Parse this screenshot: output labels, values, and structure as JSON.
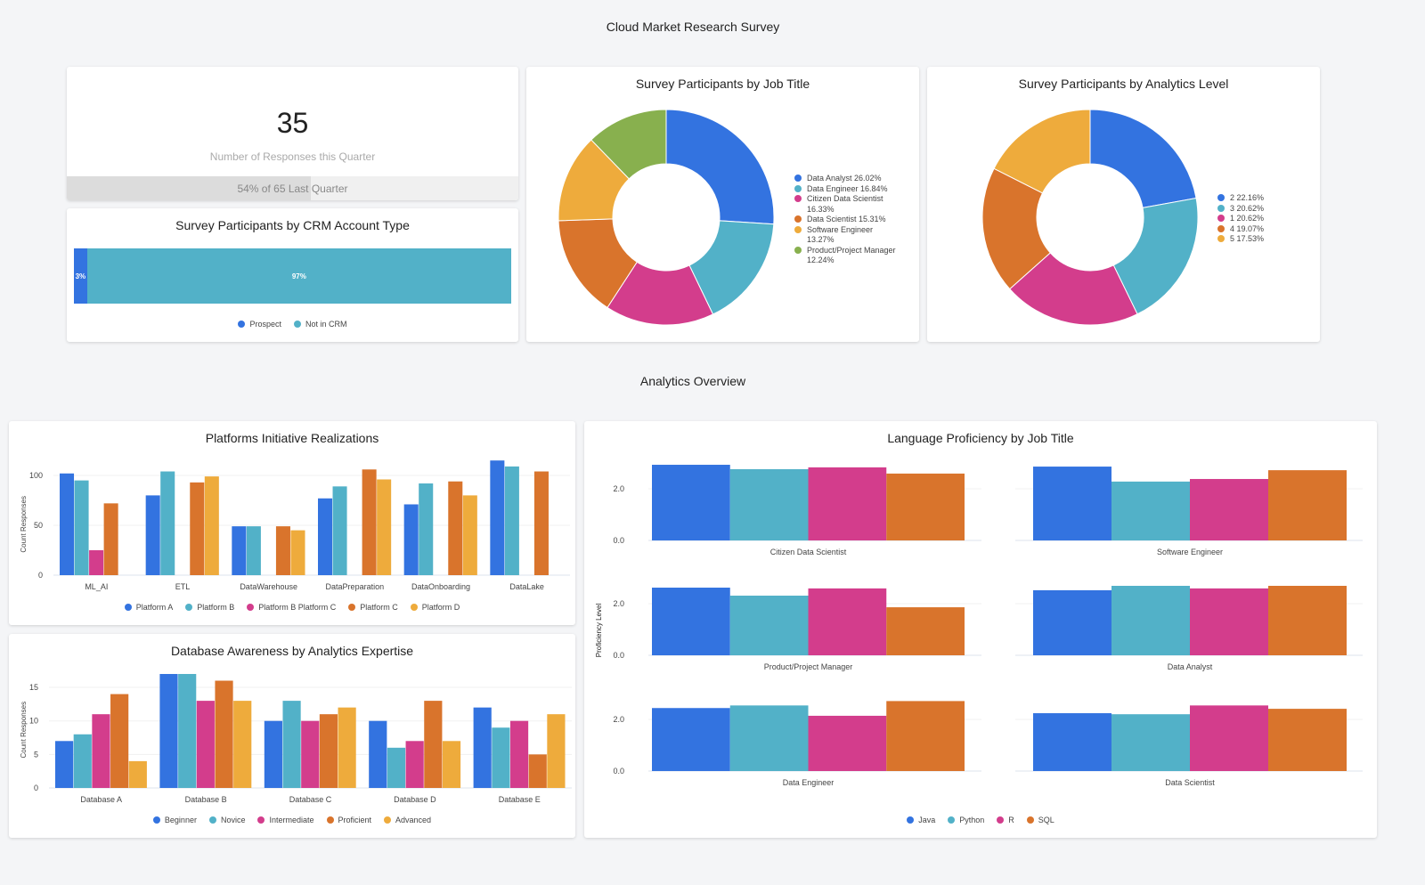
{
  "page_title": "Cloud Market Research Survey",
  "section2_title": "Analytics Overview",
  "colors": {
    "blue": "#3373e0",
    "teal": "#52b1c8",
    "pink": "#d33d8c",
    "orange": "#d9742c",
    "yellow": "#eeab3c",
    "green": "#88b04e"
  },
  "kpi": {
    "value": "35",
    "label": "Number of Responses this Quarter",
    "comparison": "54% of 65 Last Quarter",
    "progress_percent": 54
  },
  "crm": {
    "title": "Survey Participants by CRM Account Type",
    "segments": [
      {
        "name": "Prospect",
        "label": "3%",
        "value": 3,
        "color": "#3373e0"
      },
      {
        "name": "Not in CRM",
        "label": "97%",
        "value": 97,
        "color": "#52b1c8"
      }
    ]
  },
  "chart_data": [
    {
      "type": "pie",
      "title": "Survey Participants by Job Title",
      "donut": true,
      "legend": "right",
      "slices": [
        {
          "label": "Data Analyst 26.02%",
          "name": "Data Analyst",
          "value": 26.02,
          "color": "#3373e0"
        },
        {
          "label": "Data Engineer 16.84%",
          "name": "Data Engineer",
          "value": 16.84,
          "color": "#52b1c8"
        },
        {
          "label": "Citizen Data Scientist 16.33%",
          "name": "Citizen Data Scientist",
          "value": 16.33,
          "color": "#d33d8c"
        },
        {
          "label": "Data Scientist 15.31%",
          "name": "Data Scientist",
          "value": 15.31,
          "color": "#d9742c"
        },
        {
          "label": "Software Engineer 13.27%",
          "name": "Software Engineer",
          "value": 13.27,
          "color": "#eeab3c"
        },
        {
          "label": "Product/Project Manager 12.24%",
          "name": "Product/Project Manager",
          "value": 12.24,
          "color": "#88b04e"
        }
      ]
    },
    {
      "type": "pie",
      "title": "Survey Participants by Analytics Level",
      "donut": true,
      "legend": "right",
      "slices": [
        {
          "label": "2 22.16%",
          "name": "2",
          "value": 22.16,
          "color": "#3373e0"
        },
        {
          "label": "3 20.62%",
          "name": "3",
          "value": 20.62,
          "color": "#52b1c8"
        },
        {
          "label": "1 20.62%",
          "name": "1",
          "value": 20.62,
          "color": "#d33d8c"
        },
        {
          "label": "4 19.07%",
          "name": "4",
          "value": 19.07,
          "color": "#d9742c"
        },
        {
          "label": "5 17.53%",
          "name": "5",
          "value": 17.53,
          "color": "#eeab3c"
        }
      ]
    },
    {
      "type": "bar",
      "title": "Platforms Initiative Realizations",
      "ylabel": "Count Responses",
      "ylim": [
        0,
        120
      ],
      "yticks": [
        "0",
        "50",
        "100"
      ],
      "legend": "bottom",
      "categories": [
        "ML_AI",
        "ETL",
        "DataWarehouse",
        "DataPreparation",
        "DataOnboarding",
        "DataLake"
      ],
      "series": [
        {
          "name": "Platform A",
          "color": "#3373e0",
          "values": [
            102,
            80,
            49,
            77,
            71,
            115
          ]
        },
        {
          "name": "Platform B",
          "color": "#52b1c8",
          "values": [
            95,
            104,
            49,
            89,
            92,
            109
          ]
        },
        {
          "name": "Platform B Platform C",
          "color": "#d33d8c",
          "values": [
            25,
            null,
            null,
            null,
            null,
            null
          ]
        },
        {
          "name": "Platform C",
          "color": "#d9742c",
          "values": [
            72,
            93,
            49,
            106,
            94,
            104
          ]
        },
        {
          "name": "Platform D",
          "color": "#eeab3c",
          "values": [
            null,
            99,
            45,
            96,
            80,
            null
          ]
        }
      ]
    },
    {
      "type": "bar",
      "title": "Database Awareness by Analytics Expertise",
      "ylabel": "Count Responses",
      "ylim": [
        0,
        20
      ],
      "yticks": [
        "0",
        "5",
        "10",
        "15"
      ],
      "legend": "bottom",
      "categories": [
        "Database A",
        "Database B",
        "Database C",
        "Database D",
        "Database E"
      ],
      "series": [
        {
          "name": "Beginner",
          "color": "#3373e0",
          "values": [
            7,
            17,
            10,
            10,
            12
          ]
        },
        {
          "name": "Novice",
          "color": "#52b1c8",
          "values": [
            8,
            17,
            13,
            6,
            9
          ]
        },
        {
          "name": "Intermediate",
          "color": "#d33d8c",
          "values": [
            11,
            13,
            10,
            7,
            10
          ]
        },
        {
          "name": "Proficient",
          "color": "#d9742c",
          "values": [
            14,
            16,
            11,
            13,
            5
          ]
        },
        {
          "name": "Advanced",
          "color": "#eeab3c",
          "values": [
            4,
            13,
            12,
            7,
            11
          ]
        }
      ]
    },
    {
      "type": "bar",
      "title": "Language Proficiency by Job Title",
      "ylabel": "Proficiency Level",
      "yticks": [
        "0.0",
        "2.0"
      ],
      "legend": "bottom",
      "series_names": [
        "Java",
        "Python",
        "R",
        "SQL"
      ],
      "series_colors": [
        "#3373e0",
        "#52b1c8",
        "#d33d8c",
        "#d9742c"
      ],
      "panels": [
        {
          "category": "Citizen Data Scientist",
          "values": [
            2.93,
            2.76,
            2.83,
            2.59
          ]
        },
        {
          "category": "Software Engineer",
          "values": [
            2.86,
            2.28,
            2.38,
            2.72
          ]
        },
        {
          "category": "Product/Project Manager",
          "values": [
            2.62,
            2.31,
            2.59,
            1.86
          ]
        },
        {
          "category": "Data Analyst",
          "values": [
            2.52,
            2.69,
            2.59,
            2.69
          ]
        },
        {
          "category": "Data Engineer",
          "values": [
            2.44,
            2.54,
            2.14,
            2.71
          ]
        },
        {
          "category": "Data Scientist",
          "values": [
            2.24,
            2.2,
            2.54,
            2.41
          ]
        }
      ]
    }
  ]
}
